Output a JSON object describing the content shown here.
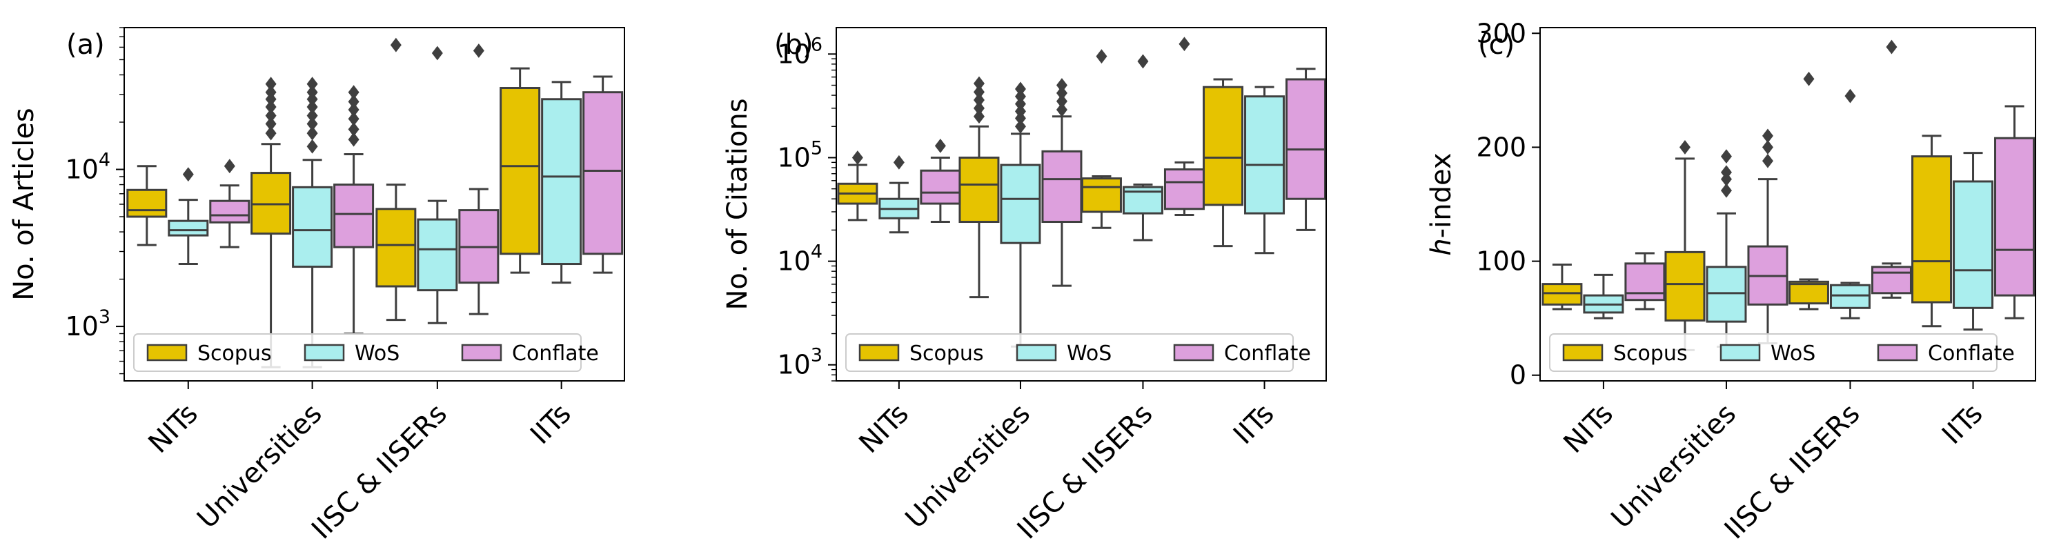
{
  "chart_data": [
    {
      "panel_label": "(a)",
      "type": "box",
      "scale": "log",
      "ylabel": "No. of Articles",
      "ylim": [
        450,
        80000
      ],
      "major_ticks": [
        1000,
        10000
      ],
      "major_tick_labels": [
        {
          "base": "10",
          "exp": "3"
        },
        {
          "base": "10",
          "exp": "4"
        }
      ],
      "categories": [
        "NITs",
        "Universities",
        "IISC & IISERs",
        "IITs"
      ],
      "legend": [
        "Scopus",
        "WoS",
        "Conflate"
      ],
      "legend_position": "lower-left",
      "colors": {
        "Scopus": "#e6c300",
        "WoS": "#aaeeee",
        "Conflate": "#dda0dd"
      },
      "series": [
        {
          "name": "Scopus",
          "boxes": [
            {
              "whislo": 3300,
              "q1": 5000,
              "med": 5500,
              "q3": 7400,
              "whishi": 10500,
              "fliers": []
            },
            {
              "whislo": 550,
              "q1": 3900,
              "med": 6000,
              "q3": 9500,
              "whishi": 14500,
              "fliers": [
                17000,
                19500,
                22000,
                25000,
                28000,
                31000,
                35000
              ]
            },
            {
              "whislo": 1100,
              "q1": 1800,
              "med": 3300,
              "q3": 5600,
              "whishi": 8000,
              "fliers": [
                62000
              ]
            },
            {
              "whislo": 2200,
              "q1": 2900,
              "med": 10500,
              "q3": 33000,
              "whishi": 44000,
              "fliers": []
            }
          ]
        },
        {
          "name": "WoS",
          "boxes": [
            {
              "whislo": 2500,
              "q1": 3800,
              "med": 4100,
              "q3": 4700,
              "whishi": 6400,
              "fliers": [
                9300
              ]
            },
            {
              "whislo": 550,
              "q1": 2400,
              "med": 4100,
              "q3": 7700,
              "whishi": 11500,
              "fliers": [
                14000,
                17000,
                19500,
                22000,
                25000,
                28000,
                31000,
                35000
              ]
            },
            {
              "whislo": 1050,
              "q1": 1700,
              "med": 3100,
              "q3": 4800,
              "whishi": 6300,
              "fliers": [
                55000
              ]
            },
            {
              "whislo": 1900,
              "q1": 2500,
              "med": 9000,
              "q3": 28000,
              "whishi": 36000,
              "fliers": []
            }
          ]
        },
        {
          "name": "Conflate",
          "boxes": [
            {
              "whislo": 3200,
              "q1": 4600,
              "med": 5100,
              "q3": 6300,
              "whishi": 7900,
              "fliers": [
                10500
              ]
            },
            {
              "whislo": 900,
              "q1": 3200,
              "med": 5200,
              "q3": 8000,
              "whishi": 12500,
              "fliers": [
                15500,
                18000,
                21000,
                24000,
                27000,
                31000
              ]
            },
            {
              "whislo": 1200,
              "q1": 1900,
              "med": 3200,
              "q3": 5500,
              "whishi": 7500,
              "fliers": [
                57000
              ]
            },
            {
              "whislo": 2200,
              "q1": 2900,
              "med": 9800,
              "q3": 31000,
              "whishi": 39000,
              "fliers": []
            }
          ]
        }
      ]
    },
    {
      "panel_label": "(b)",
      "type": "box",
      "scale": "log",
      "ylabel": "No. of Citations",
      "ylim": [
        700,
        1800000
      ],
      "major_ticks": [
        1000,
        10000,
        100000,
        1000000
      ],
      "major_tick_labels": [
        {
          "base": "10",
          "exp": "3"
        },
        {
          "base": "10",
          "exp": "4"
        },
        {
          "base": "10",
          "exp": "5"
        },
        {
          "base": "10",
          "exp": "6"
        }
      ],
      "categories": [
        "NITs",
        "Universities",
        "IISC & IISERs",
        "IITs"
      ],
      "legend": [
        "Scopus",
        "WoS",
        "Conflate"
      ],
      "legend_position": "lower-left",
      "colors": {
        "Scopus": "#e6c300",
        "WoS": "#aaeeee",
        "Conflate": "#dda0dd"
      },
      "series": [
        {
          "name": "Scopus",
          "boxes": [
            {
              "whislo": 25000,
              "q1": 36000,
              "med": 45000,
              "q3": 56000,
              "whishi": 85000,
              "fliers": [
                100000
              ]
            },
            {
              "whislo": 4500,
              "q1": 24000,
              "med": 55000,
              "q3": 100000,
              "whishi": 200000,
              "fliers": [
                250000,
                300000,
                360000,
                430000,
                520000
              ]
            },
            {
              "whislo": 21000,
              "q1": 30000,
              "med": 52000,
              "q3": 63000,
              "whishi": 66000,
              "fliers": [
                950000
              ]
            },
            {
              "whislo": 14000,
              "q1": 35000,
              "med": 100000,
              "q3": 480000,
              "whishi": 570000,
              "fliers": []
            }
          ]
        },
        {
          "name": "WoS",
          "boxes": [
            {
              "whislo": 19000,
              "q1": 26000,
              "med": 32000,
              "q3": 40000,
              "whishi": 57000,
              "fliers": [
                90000
              ]
            },
            {
              "whislo": 1500,
              "q1": 15000,
              "med": 40000,
              "q3": 85000,
              "whishi": 170000,
              "fliers": [
                200000,
                240000,
                280000,
                330000,
                390000,
                460000
              ]
            },
            {
              "whislo": 16000,
              "q1": 29000,
              "med": 47000,
              "q3": 52000,
              "whishi": 55000,
              "fliers": [
                850000
              ]
            },
            {
              "whislo": 12000,
              "q1": 29000,
              "med": 85000,
              "q3": 390000,
              "whishi": 480000,
              "fliers": []
            }
          ]
        },
        {
          "name": "Conflate",
          "boxes": [
            {
              "whislo": 24000,
              "q1": 36000,
              "med": 46000,
              "q3": 75000,
              "whishi": 100000,
              "fliers": [
                130000
              ]
            },
            {
              "whislo": 5800,
              "q1": 24000,
              "med": 62000,
              "q3": 115000,
              "whishi": 250000,
              "fliers": [
                290000,
                350000,
                420000,
                500000
              ]
            },
            {
              "whislo": 28000,
              "q1": 32000,
              "med": 58000,
              "q3": 77000,
              "whishi": 90000,
              "fliers": [
                1250000
              ]
            },
            {
              "whislo": 20000,
              "q1": 40000,
              "med": 120000,
              "q3": 570000,
              "whishi": 720000,
              "fliers": []
            }
          ]
        }
      ]
    },
    {
      "panel_label": "(c)",
      "type": "box",
      "scale": "linear",
      "ylabel": "h-index",
      "ylabel_italic_part": "h",
      "ylabel_rest": "-index",
      "ylim": [
        -5,
        305
      ],
      "major_ticks": [
        0,
        100,
        200,
        300
      ],
      "major_tick_labels": [
        "0",
        "100",
        "200",
        "300"
      ],
      "categories": [
        "NITs",
        "Universities",
        "IISC & IISERs",
        "IITs"
      ],
      "legend": [
        "Scopus",
        "WoS",
        "Conflate"
      ],
      "legend_position": "lower-left",
      "colors": {
        "Scopus": "#e6c300",
        "WoS": "#aaeeee",
        "Conflate": "#dda0dd"
      },
      "series": [
        {
          "name": "Scopus",
          "boxes": [
            {
              "whislo": 58,
              "q1": 62,
              "med": 72,
              "q3": 80,
              "whishi": 97,
              "fliers": []
            },
            {
              "whislo": 22,
              "q1": 48,
              "med": 80,
              "q3": 108,
              "whishi": 190,
              "fliers": [
                200
              ]
            },
            {
              "whislo": 58,
              "q1": 63,
              "med": 80,
              "q3": 82,
              "whishi": 84,
              "fliers": [
                260
              ]
            },
            {
              "whislo": 43,
              "q1": 64,
              "med": 100,
              "q3": 192,
              "whishi": 210,
              "fliers": []
            }
          ]
        },
        {
          "name": "WoS",
          "boxes": [
            {
              "whislo": 50,
              "q1": 55,
              "med": 62,
              "q3": 70,
              "whishi": 88,
              "fliers": []
            },
            {
              "whislo": 25,
              "q1": 47,
              "med": 72,
              "q3": 95,
              "whishi": 142,
              "fliers": [
                162,
                172,
                178,
                192
              ]
            },
            {
              "whislo": 50,
              "q1": 59,
              "med": 70,
              "q3": 79,
              "whishi": 81,
              "fliers": [
                245
              ]
            },
            {
              "whislo": 40,
              "q1": 59,
              "med": 92,
              "q3": 170,
              "whishi": 195,
              "fliers": []
            }
          ]
        },
        {
          "name": "Conflate",
          "boxes": [
            {
              "whislo": 58,
              "q1": 66,
              "med": 72,
              "q3": 98,
              "whishi": 107,
              "fliers": []
            },
            {
              "whislo": 28,
              "q1": 62,
              "med": 87,
              "q3": 113,
              "whishi": 172,
              "fliers": [
                188,
                200,
                210
              ]
            },
            {
              "whislo": 68,
              "q1": 72,
              "med": 90,
              "q3": 95,
              "whishi": 98,
              "fliers": [
                288
              ]
            },
            {
              "whislo": 50,
              "q1": 70,
              "med": 110,
              "q3": 208,
              "whishi": 236,
              "fliers": []
            }
          ]
        }
      ]
    }
  ]
}
